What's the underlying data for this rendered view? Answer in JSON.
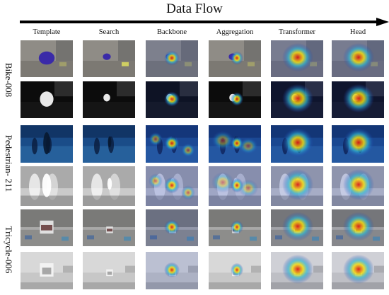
{
  "title": "Data Flow",
  "columns": [
    "Template",
    "Search",
    "Backbone",
    "Aggregation",
    "Transformer",
    "Head"
  ],
  "groups": [
    {
      "label": "Bike-008"
    },
    {
      "label": "Pedestrian- 211"
    },
    {
      "label": "Tricycle-006"
    }
  ],
  "colors": {
    "heat_hot": "#d81818",
    "heat_warm": "#f2dd10",
    "heat_cool": "#30b8d0",
    "heat_cold": "#1e3cb8"
  }
}
